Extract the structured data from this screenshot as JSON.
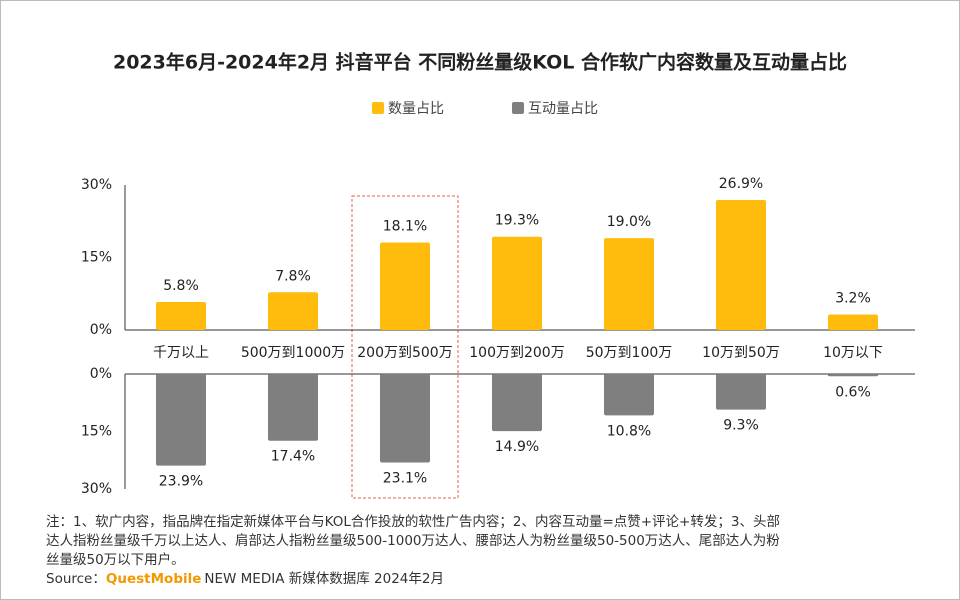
{
  "chart_data": [
    {
      "type": "bar",
      "title": "2023年6月-2024年2月 抖音平台 不同粉丝量级KOL 合作软广内容数量及互动量占比",
      "categories": [
        "千万以上",
        "500万到1000万",
        "200万到500万",
        "100万到200万",
        "50万到100万",
        "10万到50万",
        "10万以下"
      ],
      "series": [
        {
          "name": "数量占比",
          "color": "#ffbc0d",
          "values": [
            5.8,
            7.8,
            18.1,
            19.3,
            19.0,
            26.9,
            3.2
          ],
          "value_labels": [
            "5.8%",
            "7.8%",
            "18.1%",
            "19.3%",
            "19.0%",
            "26.9%",
            "3.2%"
          ]
        }
      ],
      "ylim": [
        0,
        30
      ],
      "yticks": [
        {
          "value": 0,
          "label": "0%"
        },
        {
          "value": 15,
          "label": "15%"
        },
        {
          "value": 30,
          "label": "30%"
        }
      ]
    },
    {
      "type": "bar",
      "series": [
        {
          "name": "互动量占比",
          "color": "#7f7f7f",
          "values": [
            23.9,
            17.4,
            23.1,
            14.9,
            10.8,
            9.3,
            0.6
          ],
          "value_labels": [
            "23.9%",
            "17.4%",
            "23.1%",
            "14.9%",
            "10.8%",
            "9.3%",
            "0.6%"
          ]
        }
      ],
      "ylim": [
        0,
        30
      ],
      "yticks": [
        {
          "value": 0,
          "label": "0%"
        },
        {
          "value": 15,
          "label": "15%"
        },
        {
          "value": 30,
          "label": "30%"
        }
      ],
      "inverted": true
    }
  ],
  "notes": [
    "注：1、软广内容，指品牌在指定新媒体平台与KOL合作投放的软性广告内容；2、内容互动量=点赞+评论+转发；3、头部",
    "达人指粉丝量级千万以上达人、肩部达人指粉丝量级500-1000万达人、腰部达人为粉丝量级50-500万达人、尾部达人为粉",
    "丝量级50万以下用户。"
  ],
  "source": {
    "label": "Source：",
    "brand": "QuestMobile",
    "text": "NEW MEDIA 新媒体数据库 2024年2月"
  }
}
